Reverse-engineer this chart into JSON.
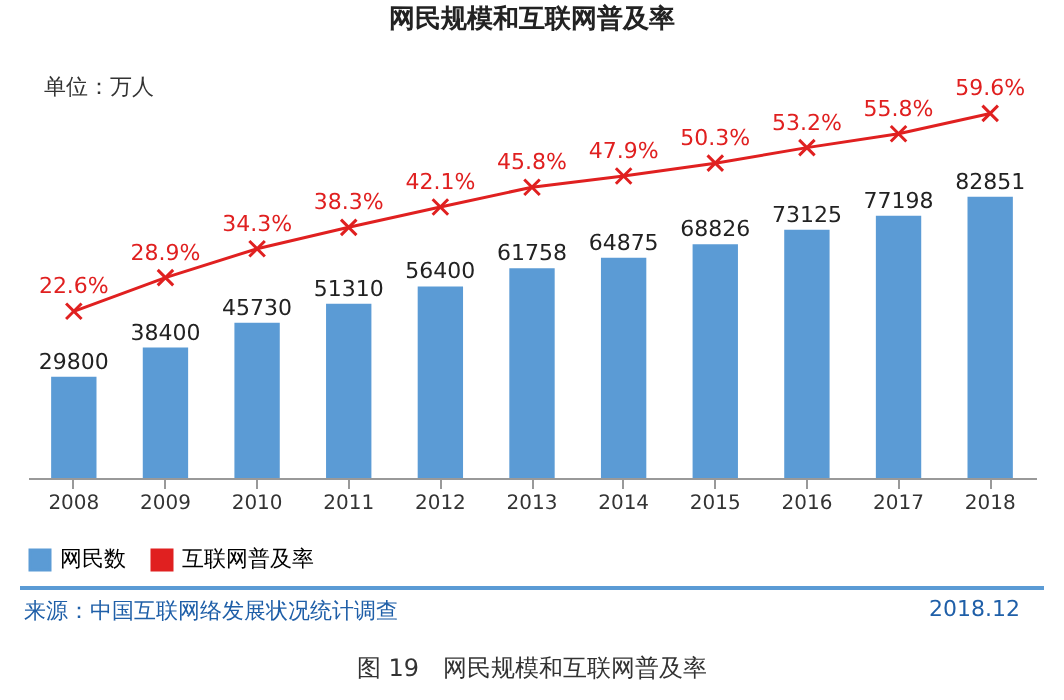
{
  "chart_data": {
    "type": "bar",
    "title": "网民规模和互联网普及率",
    "annotations": [
      "单位：万人",
      "来源：中国互联网络发展状况统计调查",
      "2018.12",
      "图 19　网民规模和互联网普及率"
    ],
    "categories": [
      "2008",
      "2009",
      "2010",
      "2011",
      "2012",
      "2013",
      "2014",
      "2015",
      "2016",
      "2017",
      "2018"
    ],
    "series": [
      {
        "name": "网民数",
        "color": "#5b9bd5",
        "values": [
          29800,
          38400,
          45730,
          51310,
          56400,
          61758,
          64875,
          68826,
          73125,
          77198,
          82851
        ]
      },
      {
        "name": "互联网普及率",
        "type": "line",
        "axis": "y2",
        "color": "#e02020",
        "marker": "cross",
        "line_style": "solid",
        "values": [
          22.6,
          28.9,
          34.3,
          38.3,
          42.1,
          45.8,
          47.9,
          50.3,
          53.2,
          55.8,
          59.6
        ],
        "value_labels": [
          "22.6%",
          "28.9%",
          "34.3%",
          "38.3%",
          "42.1%",
          "45.8%",
          "47.9%",
          "50.3%",
          "53.2%",
          "55.8%",
          "59.6%"
        ]
      }
    ],
    "data_labels": true,
    "tick_labels": "x",
    "legend": "bottom",
    "grid": false
  }
}
